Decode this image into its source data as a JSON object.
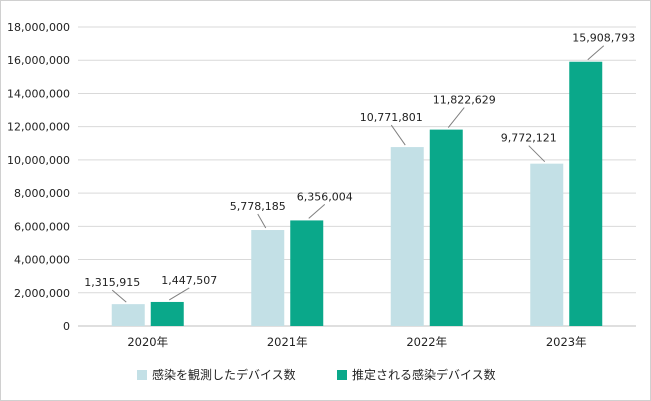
{
  "chart_data": {
    "type": "bar",
    "title": "",
    "xlabel": "",
    "ylabel": "",
    "categories": [
      "2020年",
      "2021年",
      "2022年",
      "2023年"
    ],
    "series": [
      {
        "name": "感染を観測したデバイス数",
        "color": "#c3e0e6",
        "values": [
          1315915,
          5778185,
          10771801,
          9772121
        ],
        "labels": [
          "1,315,915",
          "5,778,185",
          "10,771,801",
          "9,772,121"
        ]
      },
      {
        "name": "推定される感染デバイス数",
        "color": "#0aa88a",
        "values": [
          1447507,
          6356004,
          11822629,
          15908793
        ],
        "labels": [
          "1,447,507",
          "6,356,004",
          "11,822,629",
          "15,908,793"
        ]
      }
    ],
    "ylim": [
      0,
      18000000
    ],
    "yticks": [
      0,
      2000000,
      4000000,
      6000000,
      8000000,
      10000000,
      12000000,
      14000000,
      16000000,
      18000000
    ],
    "ytick_labels": [
      "0",
      "2,000,000",
      "4,000,000",
      "6,000,000",
      "8,000,000",
      "10,000,000",
      "12,000,000",
      "14,000,000",
      "16,000,000",
      "18,000,000"
    ],
    "grid": true,
    "legend": "bottom"
  }
}
